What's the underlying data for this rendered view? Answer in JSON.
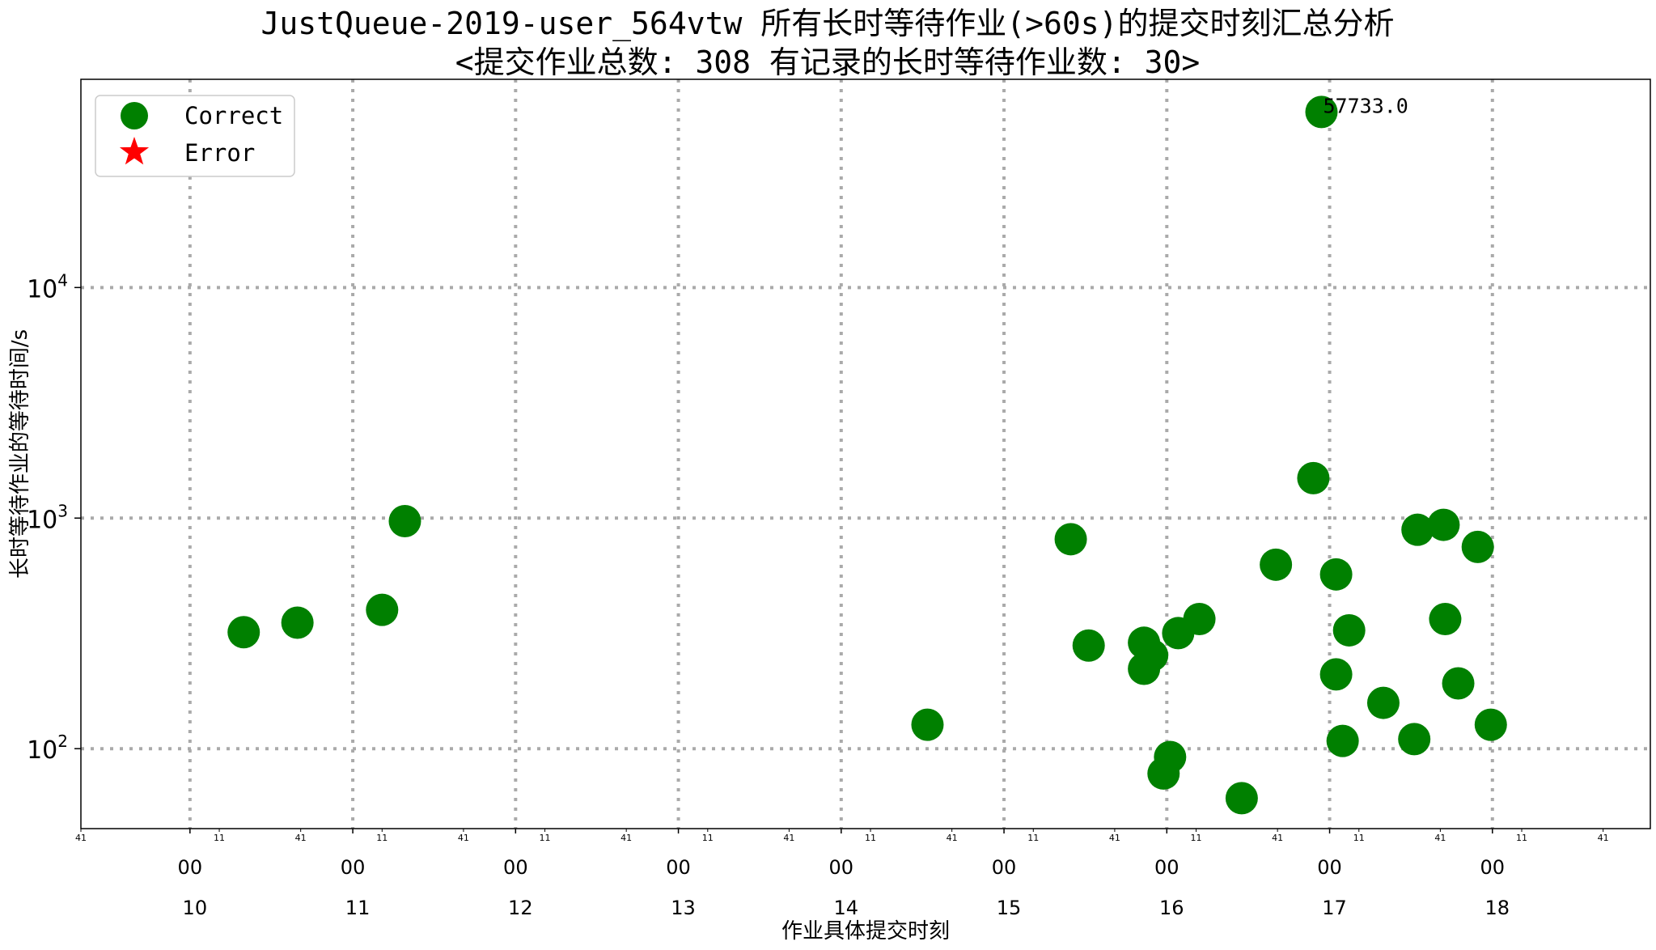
{
  "chart_data": {
    "type": "scatter",
    "title_line1": "JustQueue-2019-user_564vtw 所有长时等待作业(>60s)的提交时刻汇总分析",
    "title_line2": "<提交作业总数: 308  有记录的长时等待作业数: 30>",
    "xlabel": "作业具体提交时刻",
    "ylabel": "长时等待作业的等待时间/s",
    "y_scale": "log",
    "ylim": [
      45,
      80000
    ],
    "xlim": [
      9.33,
      18.97
    ],
    "grid": true,
    "legend_position": "top-left",
    "major_ticks": [
      {
        "hour": 10,
        "minute_label": "00",
        "hour_label": "10"
      },
      {
        "hour": 11,
        "minute_label": "00",
        "hour_label": "11"
      },
      {
        "hour": 12,
        "minute_label": "00",
        "hour_label": "12"
      },
      {
        "hour": 13,
        "minute_label": "00",
        "hour_label": "13"
      },
      {
        "hour": 14,
        "minute_label": "00",
        "hour_label": "14"
      },
      {
        "hour": 15,
        "minute_label": "00",
        "hour_label": "15"
      },
      {
        "hour": 16,
        "minute_label": "00",
        "hour_label": "16"
      },
      {
        "hour": 17,
        "minute_label": "00",
        "hour_label": "17"
      },
      {
        "hour": 18,
        "minute_label": "00",
        "hour_label": "18"
      }
    ],
    "minor_ticks": [
      {
        "x": 9.33,
        "label": "41"
      },
      {
        "x": 10.18,
        "label": "11"
      },
      {
        "x": 10.68,
        "label": "41"
      },
      {
        "x": 11.18,
        "label": "11"
      },
      {
        "x": 11.68,
        "label": "41"
      },
      {
        "x": 12.18,
        "label": "11"
      },
      {
        "x": 12.68,
        "label": "41"
      },
      {
        "x": 13.18,
        "label": "11"
      },
      {
        "x": 13.68,
        "label": "41"
      },
      {
        "x": 14.18,
        "label": "11"
      },
      {
        "x": 14.68,
        "label": "41"
      },
      {
        "x": 15.18,
        "label": "11"
      },
      {
        "x": 15.68,
        "label": "41"
      },
      {
        "x": 16.18,
        "label": "11"
      },
      {
        "x": 16.68,
        "label": "41"
      },
      {
        "x": 17.18,
        "label": "11"
      },
      {
        "x": 17.68,
        "label": "41"
      },
      {
        "x": 18.18,
        "label": "11"
      },
      {
        "x": 18.68,
        "label": "41"
      }
    ],
    "y_ticks": [
      {
        "value": 100,
        "base": "10",
        "exp": "2"
      },
      {
        "value": 1000,
        "base": "10",
        "exp": "3"
      },
      {
        "value": 10000,
        "base": "10",
        "exp": "4"
      }
    ],
    "legend": [
      {
        "label": "Correct",
        "marker": "circle",
        "color": "#008000"
      },
      {
        "label": "Error",
        "marker": "star",
        "color": "#ff0000"
      }
    ],
    "series": [
      {
        "name": "Correct",
        "color": "#008000",
        "points": [
          {
            "x": 10.33,
            "y": 320
          },
          {
            "x": 10.66,
            "y": 352
          },
          {
            "x": 11.18,
            "y": 400
          },
          {
            "x": 11.32,
            "y": 970
          },
          {
            "x": 14.53,
            "y": 127
          },
          {
            "x": 15.41,
            "y": 810
          },
          {
            "x": 15.52,
            "y": 280
          },
          {
            "x": 15.86,
            "y": 288
          },
          {
            "x": 15.91,
            "y": 254
          },
          {
            "x": 15.86,
            "y": 222
          },
          {
            "x": 15.98,
            "y": 78
          },
          {
            "x": 16.02,
            "y": 92
          },
          {
            "x": 16.07,
            "y": 317
          },
          {
            "x": 16.2,
            "y": 365
          },
          {
            "x": 16.46,
            "y": 61
          },
          {
            "x": 16.67,
            "y": 628
          },
          {
            "x": 16.9,
            "y": 1490
          },
          {
            "x": 16.95,
            "y": 57733
          },
          {
            "x": 17.04,
            "y": 570
          },
          {
            "x": 17.04,
            "y": 210
          },
          {
            "x": 17.08,
            "y": 108
          },
          {
            "x": 17.12,
            "y": 326
          },
          {
            "x": 17.33,
            "y": 158
          },
          {
            "x": 17.52,
            "y": 110
          },
          {
            "x": 17.54,
            "y": 890
          },
          {
            "x": 17.7,
            "y": 935
          },
          {
            "x": 17.71,
            "y": 365
          },
          {
            "x": 17.79,
            "y": 192
          },
          {
            "x": 17.91,
            "y": 750
          },
          {
            "x": 17.99,
            "y": 127
          }
        ]
      },
      {
        "name": "Error",
        "color": "#ff0000",
        "points": []
      }
    ],
    "annotations": [
      {
        "text": "57733.0",
        "x": 16.95,
        "y": 57733
      }
    ]
  }
}
